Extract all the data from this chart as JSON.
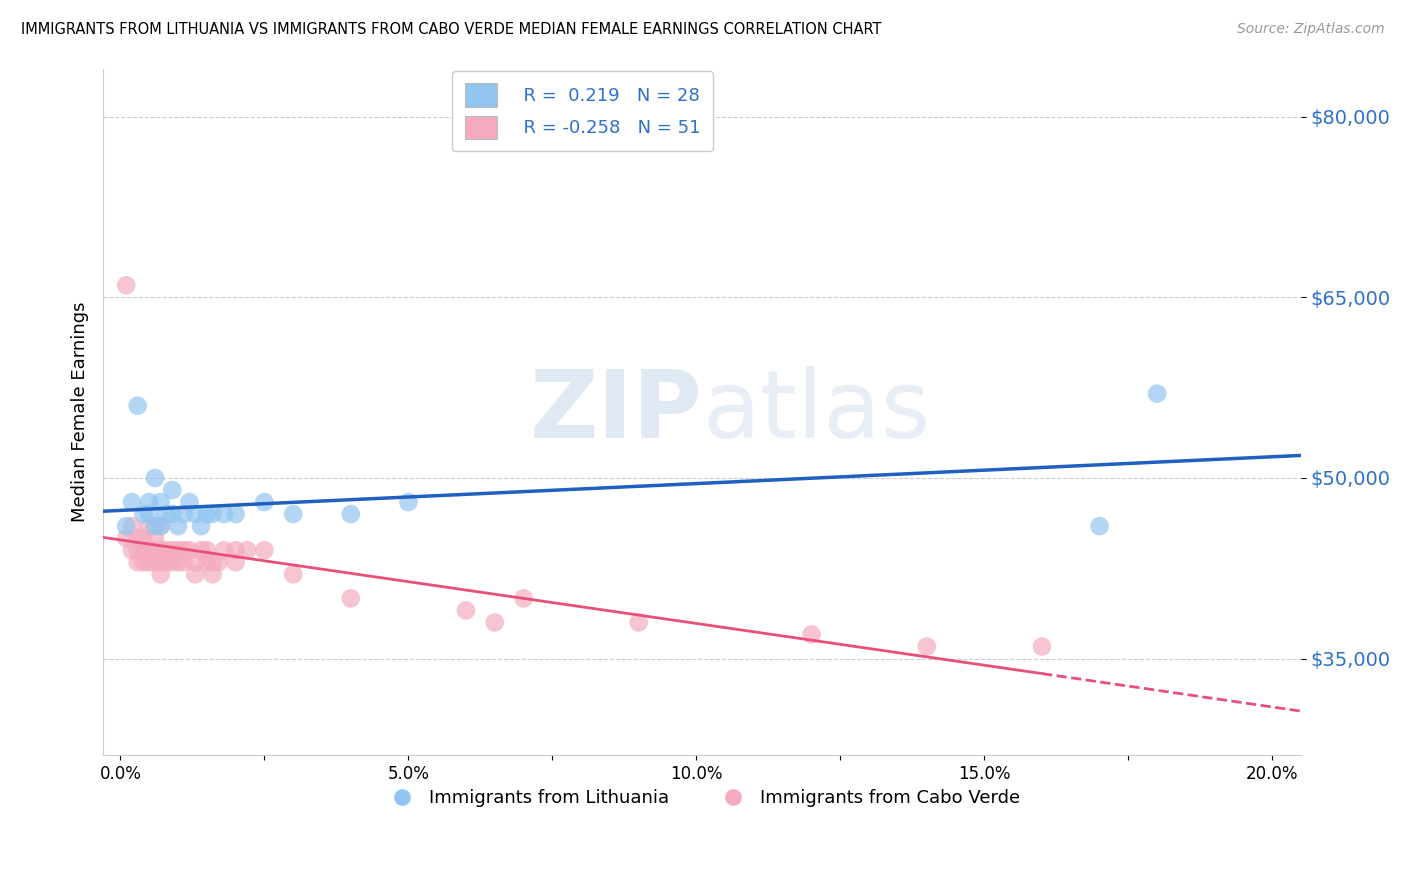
{
  "title": "IMMIGRANTS FROM LITHUANIA VS IMMIGRANTS FROM CABO VERDE MEDIAN FEMALE EARNINGS CORRELATION CHART",
  "source": "Source: ZipAtlas.com",
  "ylabel": "Median Female Earnings",
  "xlabel_ticks": [
    "0.0%",
    "",
    "5.0%",
    "",
    "10.0%",
    "",
    "15.0%",
    "",
    "20.0%"
  ],
  "xlabel_vals": [
    0.0,
    0.025,
    0.05,
    0.075,
    0.1,
    0.125,
    0.15,
    0.175,
    0.2
  ],
  "ytick_labels": [
    "$35,000",
    "$50,000",
    "$65,000",
    "$80,000"
  ],
  "ytick_vals": [
    35000,
    50000,
    65000,
    80000
  ],
  "ylim": [
    27000,
    84000
  ],
  "xlim": [
    -0.003,
    0.205
  ],
  "blue_color": "#92C5F0",
  "pink_color": "#F4ABBE",
  "line_blue": "#2060C0",
  "line_pink": "#E8507A",
  "watermark": "ZIPatlas",
  "lithuania_x": [
    0.001,
    0.002,
    0.003,
    0.004,
    0.005,
    0.005,
    0.006,
    0.006,
    0.007,
    0.007,
    0.008,
    0.009,
    0.009,
    0.01,
    0.011,
    0.012,
    0.013,
    0.014,
    0.015,
    0.016,
    0.018,
    0.02,
    0.025,
    0.03,
    0.04,
    0.05,
    0.17,
    0.18
  ],
  "lithuania_y": [
    46000,
    48000,
    56000,
    47000,
    47000,
    48000,
    50000,
    46000,
    46000,
    48000,
    47000,
    47000,
    49000,
    46000,
    47000,
    48000,
    47000,
    46000,
    47000,
    47000,
    47000,
    47000,
    48000,
    47000,
    47000,
    48000,
    46000,
    57000
  ],
  "caboverde_x": [
    0.001,
    0.001,
    0.002,
    0.002,
    0.003,
    0.003,
    0.003,
    0.004,
    0.004,
    0.004,
    0.005,
    0.005,
    0.005,
    0.006,
    0.006,
    0.006,
    0.007,
    0.007,
    0.007,
    0.007,
    0.008,
    0.008,
    0.009,
    0.009,
    0.01,
    0.01,
    0.011,
    0.011,
    0.012,
    0.013,
    0.013,
    0.014,
    0.015,
    0.015,
    0.016,
    0.016,
    0.017,
    0.018,
    0.02,
    0.02,
    0.022,
    0.025,
    0.03,
    0.04,
    0.06,
    0.065,
    0.07,
    0.09,
    0.12,
    0.14,
    0.16
  ],
  "caboverde_y": [
    45000,
    66000,
    44000,
    46000,
    45000,
    44000,
    43000,
    45000,
    44000,
    43000,
    46000,
    44000,
    43000,
    45000,
    44000,
    43000,
    46000,
    44000,
    43000,
    42000,
    44000,
    43000,
    44000,
    43000,
    44000,
    43000,
    44000,
    43000,
    44000,
    43000,
    42000,
    44000,
    44000,
    43000,
    43000,
    42000,
    43000,
    44000,
    44000,
    43000,
    44000,
    44000,
    42000,
    40000,
    39000,
    38000,
    40000,
    38000,
    37000,
    36000,
    36000
  ]
}
